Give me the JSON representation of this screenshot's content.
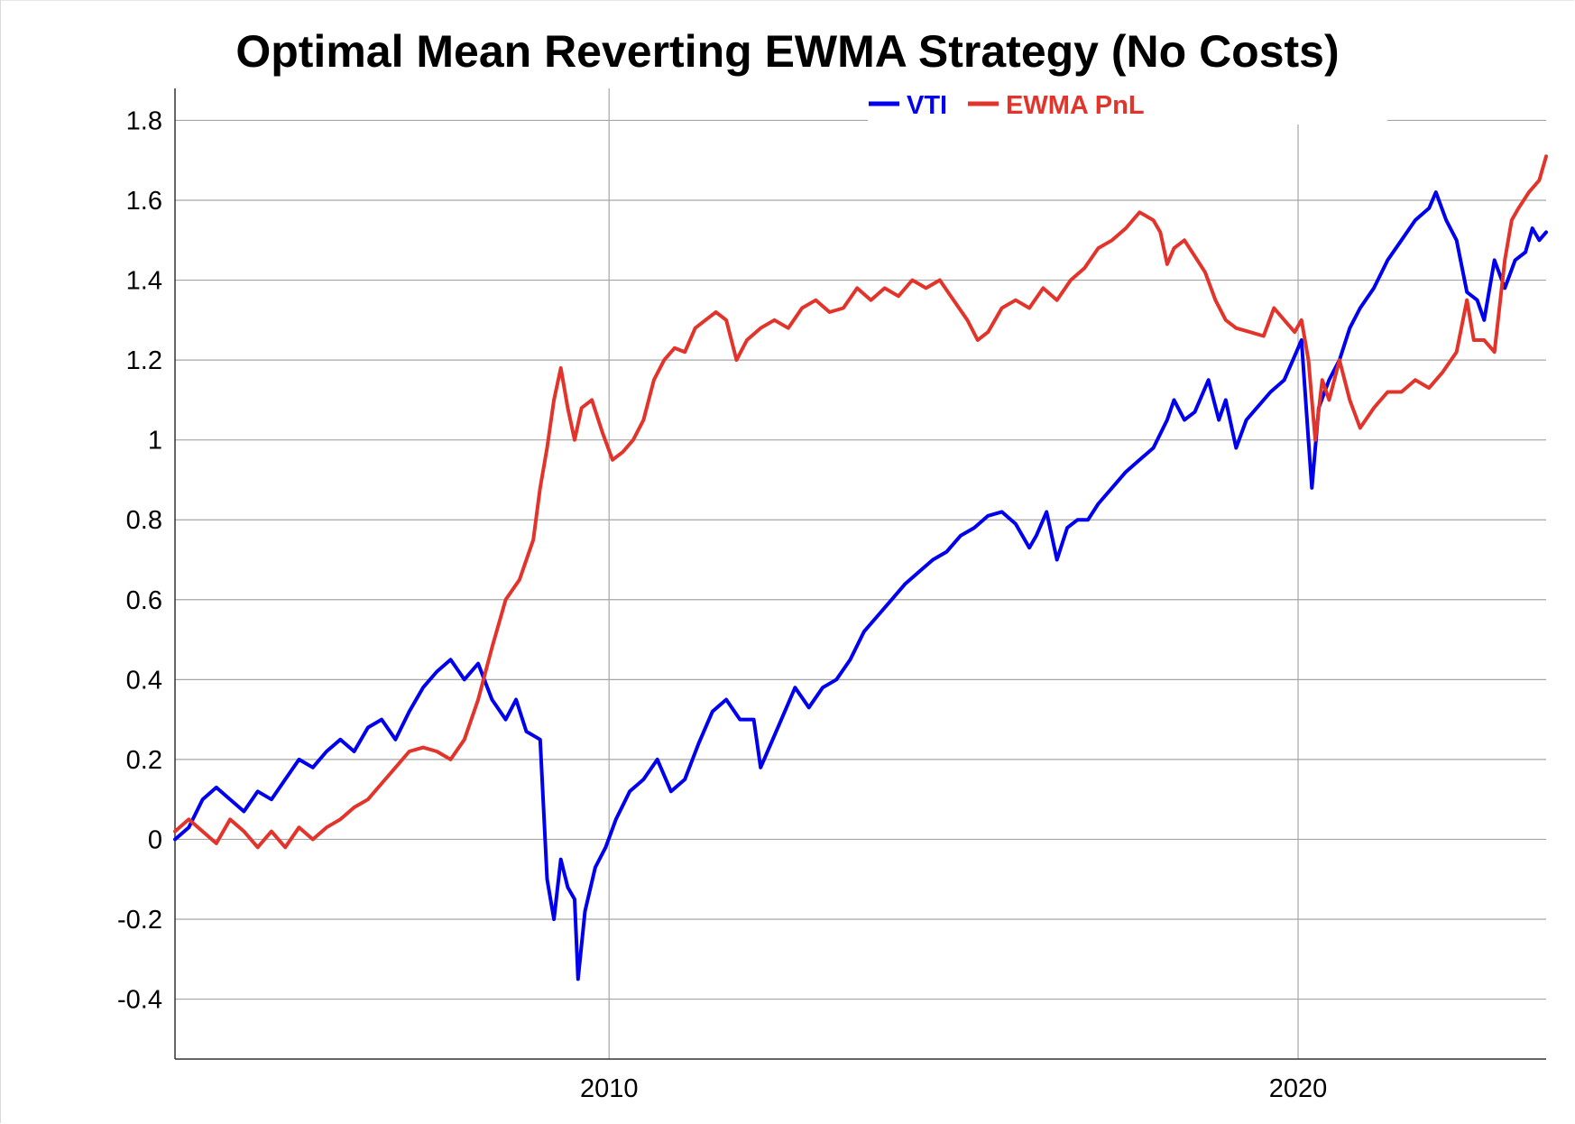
{
  "chart_data": {
    "type": "line",
    "title": "Optimal Mean Reverting EWMA Strategy (No Costs)",
    "xlabel": "",
    "ylabel": "",
    "xlim": [
      2003.7,
      2023.6
    ],
    "ylim": [
      -0.55,
      1.88
    ],
    "x_ticks": [
      2010,
      2020
    ],
    "x_tick_labels": [
      "2010",
      "2020"
    ],
    "y_ticks": [
      -0.4,
      -0.2,
      0,
      0.2,
      0.4,
      0.6,
      0.8,
      1,
      1.2,
      1.4,
      1.6,
      1.8
    ],
    "y_tick_labels": [
      "-0.4",
      "-0.2",
      "0",
      "0.2",
      "0.4",
      "0.6",
      "0.8",
      "1",
      "1.2",
      "1.4",
      "1.6",
      "1.8"
    ],
    "grid": true,
    "legend_position": "top-right",
    "series": [
      {
        "name": "VTI",
        "color": "#0000ee",
        "points": [
          [
            2003.7,
            0.0
          ],
          [
            2003.9,
            0.03
          ],
          [
            2004.1,
            0.1
          ],
          [
            2004.3,
            0.13
          ],
          [
            2004.5,
            0.1
          ],
          [
            2004.7,
            0.07
          ],
          [
            2004.9,
            0.12
          ],
          [
            2005.1,
            0.1
          ],
          [
            2005.3,
            0.15
          ],
          [
            2005.5,
            0.2
          ],
          [
            2005.7,
            0.18
          ],
          [
            2005.9,
            0.22
          ],
          [
            2006.1,
            0.25
          ],
          [
            2006.3,
            0.22
          ],
          [
            2006.5,
            0.28
          ],
          [
            2006.7,
            0.3
          ],
          [
            2006.9,
            0.25
          ],
          [
            2007.1,
            0.32
          ],
          [
            2007.3,
            0.38
          ],
          [
            2007.5,
            0.42
          ],
          [
            2007.7,
            0.45
          ],
          [
            2007.9,
            0.4
          ],
          [
            2008.1,
            0.44
          ],
          [
            2008.3,
            0.35
          ],
          [
            2008.5,
            0.3
          ],
          [
            2008.65,
            0.35
          ],
          [
            2008.8,
            0.27
          ],
          [
            2009.0,
            0.25
          ],
          [
            2009.1,
            -0.1
          ],
          [
            2009.2,
            -0.2
          ],
          [
            2009.3,
            -0.05
          ],
          [
            2009.4,
            -0.12
          ],
          [
            2009.5,
            -0.15
          ],
          [
            2009.55,
            -0.35
          ],
          [
            2009.65,
            -0.18
          ],
          [
            2009.8,
            -0.07
          ],
          [
            2009.95,
            -0.02
          ],
          [
            2010.1,
            0.05
          ],
          [
            2010.3,
            0.12
          ],
          [
            2010.5,
            0.15
          ],
          [
            2010.7,
            0.2
          ],
          [
            2010.9,
            0.12
          ],
          [
            2011.1,
            0.15
          ],
          [
            2011.3,
            0.24
          ],
          [
            2011.5,
            0.32
          ],
          [
            2011.7,
            0.35
          ],
          [
            2011.9,
            0.3
          ],
          [
            2012.1,
            0.3
          ],
          [
            2012.2,
            0.18
          ],
          [
            2012.35,
            0.24
          ],
          [
            2012.5,
            0.3
          ],
          [
            2012.7,
            0.38
          ],
          [
            2012.9,
            0.33
          ],
          [
            2013.1,
            0.38
          ],
          [
            2013.3,
            0.4
          ],
          [
            2013.5,
            0.45
          ],
          [
            2013.7,
            0.52
          ],
          [
            2013.9,
            0.56
          ],
          [
            2014.1,
            0.6
          ],
          [
            2014.3,
            0.64
          ],
          [
            2014.5,
            0.67
          ],
          [
            2014.7,
            0.7
          ],
          [
            2014.9,
            0.72
          ],
          [
            2015.1,
            0.76
          ],
          [
            2015.3,
            0.78
          ],
          [
            2015.5,
            0.81
          ],
          [
            2015.7,
            0.82
          ],
          [
            2015.9,
            0.79
          ],
          [
            2016.1,
            0.73
          ],
          [
            2016.2,
            0.76
          ],
          [
            2016.35,
            0.82
          ],
          [
            2016.5,
            0.7
          ],
          [
            2016.65,
            0.78
          ],
          [
            2016.8,
            0.8
          ],
          [
            2016.95,
            0.8
          ],
          [
            2017.1,
            0.84
          ],
          [
            2017.3,
            0.88
          ],
          [
            2017.5,
            0.92
          ],
          [
            2017.7,
            0.95
          ],
          [
            2017.9,
            0.98
          ],
          [
            2018.1,
            1.05
          ],
          [
            2018.2,
            1.1
          ],
          [
            2018.35,
            1.05
          ],
          [
            2018.5,
            1.07
          ],
          [
            2018.7,
            1.15
          ],
          [
            2018.85,
            1.05
          ],
          [
            2018.95,
            1.1
          ],
          [
            2019.1,
            0.98
          ],
          [
            2019.25,
            1.05
          ],
          [
            2019.4,
            1.08
          ],
          [
            2019.6,
            1.12
          ],
          [
            2019.8,
            1.15
          ],
          [
            2019.95,
            1.21
          ],
          [
            2020.05,
            1.25
          ],
          [
            2020.15,
            1.0
          ],
          [
            2020.2,
            0.88
          ],
          [
            2020.3,
            1.08
          ],
          [
            2020.45,
            1.15
          ],
          [
            2020.6,
            1.2
          ],
          [
            2020.75,
            1.28
          ],
          [
            2020.9,
            1.33
          ],
          [
            2021.1,
            1.38
          ],
          [
            2021.3,
            1.45
          ],
          [
            2021.5,
            1.5
          ],
          [
            2021.7,
            1.55
          ],
          [
            2021.9,
            1.58
          ],
          [
            2022.0,
            1.62
          ],
          [
            2022.15,
            1.55
          ],
          [
            2022.3,
            1.5
          ],
          [
            2022.45,
            1.37
          ],
          [
            2022.6,
            1.35
          ],
          [
            2022.7,
            1.3
          ],
          [
            2022.85,
            1.45
          ],
          [
            2023.0,
            1.38
          ],
          [
            2023.15,
            1.45
          ],
          [
            2023.3,
            1.47
          ],
          [
            2023.4,
            1.53
          ],
          [
            2023.5,
            1.5
          ],
          [
            2023.6,
            1.52
          ]
        ]
      },
      {
        "name": "EWMA PnL",
        "color": "#e3342b",
        "points": [
          [
            2003.7,
            0.02
          ],
          [
            2003.9,
            0.05
          ],
          [
            2004.1,
            0.02
          ],
          [
            2004.3,
            -0.01
          ],
          [
            2004.5,
            0.05
          ],
          [
            2004.7,
            0.02
          ],
          [
            2004.9,
            -0.02
          ],
          [
            2005.1,
            0.02
          ],
          [
            2005.3,
            -0.02
          ],
          [
            2005.5,
            0.03
          ],
          [
            2005.7,
            0.0
          ],
          [
            2005.9,
            0.03
          ],
          [
            2006.1,
            0.05
          ],
          [
            2006.3,
            0.08
          ],
          [
            2006.5,
            0.1
          ],
          [
            2006.7,
            0.14
          ],
          [
            2006.9,
            0.18
          ],
          [
            2007.1,
            0.22
          ],
          [
            2007.3,
            0.23
          ],
          [
            2007.5,
            0.22
          ],
          [
            2007.7,
            0.2
          ],
          [
            2007.9,
            0.25
          ],
          [
            2008.1,
            0.35
          ],
          [
            2008.3,
            0.48
          ],
          [
            2008.5,
            0.6
          ],
          [
            2008.7,
            0.65
          ],
          [
            2008.9,
            0.75
          ],
          [
            2009.0,
            0.88
          ],
          [
            2009.1,
            0.98
          ],
          [
            2009.2,
            1.1
          ],
          [
            2009.3,
            1.18
          ],
          [
            2009.4,
            1.08
          ],
          [
            2009.5,
            1.0
          ],
          [
            2009.6,
            1.08
          ],
          [
            2009.75,
            1.1
          ],
          [
            2009.9,
            1.02
          ],
          [
            2010.05,
            0.95
          ],
          [
            2010.2,
            0.97
          ],
          [
            2010.35,
            1.0
          ],
          [
            2010.5,
            1.05
          ],
          [
            2010.65,
            1.15
          ],
          [
            2010.8,
            1.2
          ],
          [
            2010.95,
            1.23
          ],
          [
            2011.1,
            1.22
          ],
          [
            2011.25,
            1.28
          ],
          [
            2011.4,
            1.3
          ],
          [
            2011.55,
            1.32
          ],
          [
            2011.7,
            1.3
          ],
          [
            2011.85,
            1.2
          ],
          [
            2012.0,
            1.25
          ],
          [
            2012.2,
            1.28
          ],
          [
            2012.4,
            1.3
          ],
          [
            2012.6,
            1.28
          ],
          [
            2012.8,
            1.33
          ],
          [
            2013.0,
            1.35
          ],
          [
            2013.2,
            1.32
          ],
          [
            2013.4,
            1.33
          ],
          [
            2013.6,
            1.38
          ],
          [
            2013.8,
            1.35
          ],
          [
            2014.0,
            1.38
          ],
          [
            2014.2,
            1.36
          ],
          [
            2014.4,
            1.4
          ],
          [
            2014.6,
            1.38
          ],
          [
            2014.8,
            1.4
          ],
          [
            2015.0,
            1.35
          ],
          [
            2015.2,
            1.3
          ],
          [
            2015.35,
            1.25
          ],
          [
            2015.5,
            1.27
          ],
          [
            2015.7,
            1.33
          ],
          [
            2015.9,
            1.35
          ],
          [
            2016.1,
            1.33
          ],
          [
            2016.3,
            1.38
          ],
          [
            2016.5,
            1.35
          ],
          [
            2016.7,
            1.4
          ],
          [
            2016.9,
            1.43
          ],
          [
            2017.1,
            1.48
          ],
          [
            2017.3,
            1.5
          ],
          [
            2017.5,
            1.53
          ],
          [
            2017.7,
            1.57
          ],
          [
            2017.9,
            1.55
          ],
          [
            2018.0,
            1.52
          ],
          [
            2018.1,
            1.44
          ],
          [
            2018.2,
            1.48
          ],
          [
            2018.35,
            1.5
          ],
          [
            2018.5,
            1.46
          ],
          [
            2018.65,
            1.42
          ],
          [
            2018.8,
            1.35
          ],
          [
            2018.95,
            1.3
          ],
          [
            2019.1,
            1.28
          ],
          [
            2019.3,
            1.27
          ],
          [
            2019.5,
            1.26
          ],
          [
            2019.65,
            1.33
          ],
          [
            2019.8,
            1.3
          ],
          [
            2019.95,
            1.27
          ],
          [
            2020.05,
            1.3
          ],
          [
            2020.15,
            1.2
          ],
          [
            2020.25,
            1.0
          ],
          [
            2020.35,
            1.15
          ],
          [
            2020.45,
            1.1
          ],
          [
            2020.6,
            1.2
          ],
          [
            2020.75,
            1.1
          ],
          [
            2020.9,
            1.03
          ],
          [
            2021.1,
            1.08
          ],
          [
            2021.3,
            1.12
          ],
          [
            2021.5,
            1.12
          ],
          [
            2021.7,
            1.15
          ],
          [
            2021.9,
            1.13
          ],
          [
            2022.1,
            1.17
          ],
          [
            2022.3,
            1.22
          ],
          [
            2022.45,
            1.35
          ],
          [
            2022.55,
            1.25
          ],
          [
            2022.7,
            1.25
          ],
          [
            2022.85,
            1.22
          ],
          [
            2023.0,
            1.45
          ],
          [
            2023.1,
            1.55
          ],
          [
            2023.2,
            1.58
          ],
          [
            2023.35,
            1.62
          ],
          [
            2023.5,
            1.65
          ],
          [
            2023.6,
            1.71
          ]
        ]
      }
    ]
  }
}
